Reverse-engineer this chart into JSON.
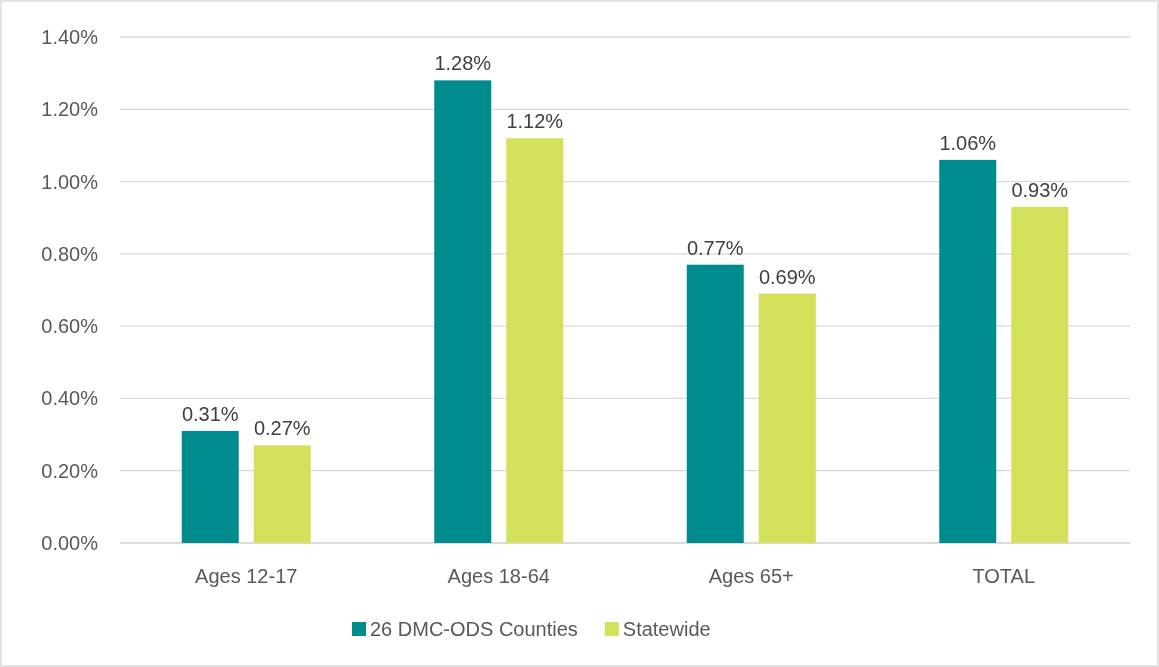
{
  "chart_data": {
    "type": "bar",
    "categories": [
      "Ages 12-17",
      "Ages 18-64",
      "Ages 65+",
      "TOTAL"
    ],
    "series": [
      {
        "name": "26 DMC-ODS Counties",
        "color": "#008b8f",
        "values": [
          0.31,
          1.28,
          0.77,
          1.06
        ],
        "value_labels": [
          "0.31%",
          "1.28%",
          "0.77%",
          "1.06%"
        ]
      },
      {
        "name": "Statewide",
        "color": "#d4df5a",
        "values": [
          0.27,
          1.12,
          0.69,
          0.93
        ],
        "value_labels": [
          "0.27%",
          "1.12%",
          "0.69%",
          "0.93%"
        ]
      }
    ],
    "ylim": [
      0,
      1.4
    ],
    "yticks": [
      {
        "value": 0,
        "label": "0.00%"
      },
      {
        "value": 0.2,
        "label": "0.20%"
      },
      {
        "value": 0.4,
        "label": "0.40%"
      },
      {
        "value": 0.6,
        "label": "0.60%"
      },
      {
        "value": 0.8,
        "label": "0.80%"
      },
      {
        "value": 1.0,
        "label": "1.00%"
      },
      {
        "value": 1.2,
        "label": "1.20%"
      },
      {
        "value": 1.4,
        "label": "1.40%"
      }
    ],
    "grid": "y",
    "legend": "bottom"
  }
}
